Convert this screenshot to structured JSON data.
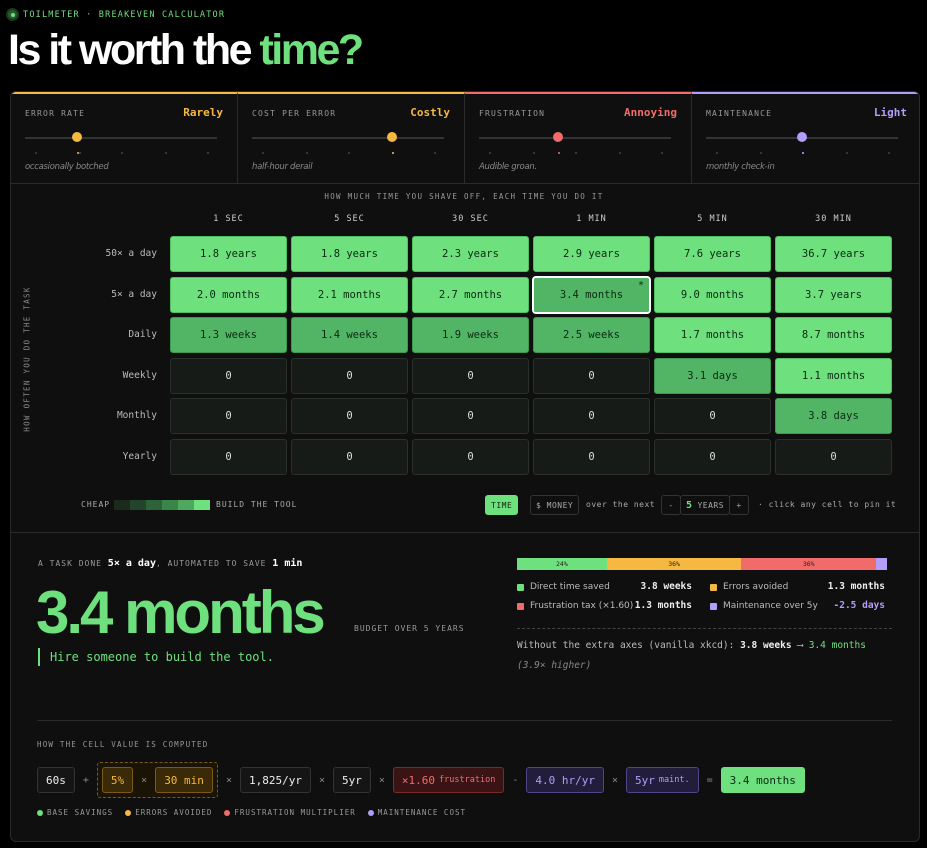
{
  "header": {
    "brand": "TOILMETER · BREAKEVEN CALCULATOR",
    "title_lead": "Is it worth the ",
    "title_accent": "time?"
  },
  "sliders": [
    {
      "label": "ERROR RATE",
      "value": "Rarely",
      "caption": "occasionally botched",
      "color": "#f5b942"
    },
    {
      "label": "COST PER ERROR",
      "value": "Costly",
      "caption": "half-hour derail",
      "color": "#f5b942"
    },
    {
      "label": "FRUSTRATION",
      "value": "Annoying",
      "caption": "Audible groan.",
      "color": "#f26b6b"
    },
    {
      "label": "MAINTENANCE",
      "value": "Light",
      "caption": "monthly check-in",
      "color": "#b39dfa"
    }
  ],
  "grid": {
    "caption": "HOW MUCH TIME YOU SHAVE OFF, EACH TIME YOU DO IT",
    "axis_label": "HOW OFTEN YOU DO THE TASK",
    "columns": [
      "1 SEC",
      "5 SEC",
      "30 SEC",
      "1 MIN",
      "5 MIN",
      "30 MIN"
    ],
    "pin_mark": "*",
    "rows": [
      {
        "label": "50× a day",
        "cells": [
          "1.8 years",
          "1.8 years",
          "2.3 years",
          "2.9 years",
          "7.6 years",
          "36.7 years"
        ],
        "tones": [
          "bright",
          "bright",
          "bright",
          "bright",
          "bright",
          "bright"
        ]
      },
      {
        "label": "5× a day",
        "cells": [
          "2.0 months",
          "2.1 months",
          "2.7 months",
          "3.4 months",
          "9.0 months",
          "3.7 years"
        ],
        "tones": [
          "bright",
          "bright",
          "bright",
          "mid",
          "bright",
          "bright"
        ]
      },
      {
        "label": "Daily",
        "cells": [
          "1.3 weeks",
          "1.4 weeks",
          "1.9 weeks",
          "2.5 weeks",
          "1.7 months",
          "8.7 months"
        ],
        "tones": [
          "mid",
          "mid",
          "mid",
          "mid",
          "bright",
          "bright"
        ]
      },
      {
        "label": "Weekly",
        "cells": [
          "0",
          "0",
          "0",
          "0",
          "3.1 days",
          "1.1 months"
        ],
        "tones": [
          "dim",
          "dim",
          "dim",
          "dim",
          "mid",
          "bright"
        ]
      },
      {
        "label": "Monthly",
        "cells": [
          "0",
          "0",
          "0",
          "0",
          "0",
          "3.8 days"
        ],
        "tones": [
          "dim",
          "dim",
          "dim",
          "dim",
          "dim",
          "mid"
        ]
      },
      {
        "label": "Yearly",
        "cells": [
          "0",
          "0",
          "0",
          "0",
          "0",
          "0"
        ],
        "tones": [
          "dim",
          "dim",
          "dim",
          "dim",
          "dim",
          "dim"
        ]
      }
    ]
  },
  "controls": {
    "scale_low": "CHEAP",
    "scale_high": "BUILD THE TOOL",
    "mode_time": "TIME",
    "mode_money": "$ MONEY",
    "horizon_lead": "over the next",
    "minus": "-",
    "years": "5",
    "years_unit": "YEARS",
    "plus": "+",
    "hint": "· click any cell to pin it"
  },
  "summary": {
    "lead": "A TASK DONE ",
    "frequency": "5× a day",
    "mid": ", AUTOMATED TO SAVE ",
    "saving": "1 min",
    "result": "3.4 months",
    "budget": "BUDGET OVER 5 YEARS",
    "verdict": "Hire someone to build the tool.",
    "breakdown": {
      "values": [
        24,
        36,
        36,
        3
      ],
      "value_labels": [
        "24%",
        "36%",
        "36%",
        null
      ],
      "colors": [
        "#6ee07e",
        "#f5b942",
        "#f26b6b",
        "#b39dfa"
      ]
    },
    "legend": [
      {
        "name": "Direct time saved",
        "value": "3.8 weeks"
      },
      {
        "name": "Errors avoided",
        "value": "1.3 months"
      },
      {
        "name": "Frustration tax (×1.60)",
        "value": "1.3 months"
      },
      {
        "name": "Maintenance over 5y",
        "value": "-2.5 days"
      }
    ],
    "compare_lead": "Without the extra axes (vanilla xkcd): ",
    "compare_from": "3.8 weeks",
    "compare_arrow": " ⟶ ",
    "compare_to": "3.4 months",
    "compare_note": "(3.9× higher)"
  },
  "formula": {
    "title": "HOW THE CELL VALUE IS COMPUTED",
    "items": [
      {
        "text": "60s",
        "kind": "base"
      },
      {
        "text": "+",
        "kind": "op"
      },
      {
        "group": [
          {
            "text": "5%",
            "kind": "err"
          },
          {
            "text": "×",
            "kind": "op"
          },
          {
            "text": "30 min",
            "kind": "err"
          }
        ]
      },
      {
        "text": "×",
        "kind": "op"
      },
      {
        "text": "1,825/yr",
        "kind": "base"
      },
      {
        "text": "×",
        "kind": "op"
      },
      {
        "text": "5yr",
        "kind": "base"
      },
      {
        "text": "×",
        "kind": "op"
      },
      {
        "text": "×1.60",
        "sub": "frustration",
        "kind": "frus"
      },
      {
        "text": "-",
        "kind": "op"
      },
      {
        "text": "4.0 hr/yr",
        "kind": "maint"
      },
      {
        "text": "×",
        "kind": "op"
      },
      {
        "text": "5yr",
        "sub": "maint.",
        "kind": "maint"
      },
      {
        "text": "=",
        "kind": "op"
      },
      {
        "text": "3.4 months",
        "kind": "result"
      }
    ],
    "legend": [
      {
        "name": "BASE SAVINGS",
        "color": "#6ee07e"
      },
      {
        "name": "ERRORS AVOIDED",
        "color": "#f5b942"
      },
      {
        "name": "FRUSTRATION MULTIPLIER",
        "color": "#f26b6b"
      },
      {
        "name": "MAINTENANCE COST",
        "color": "#b39dfa"
      }
    ]
  }
}
